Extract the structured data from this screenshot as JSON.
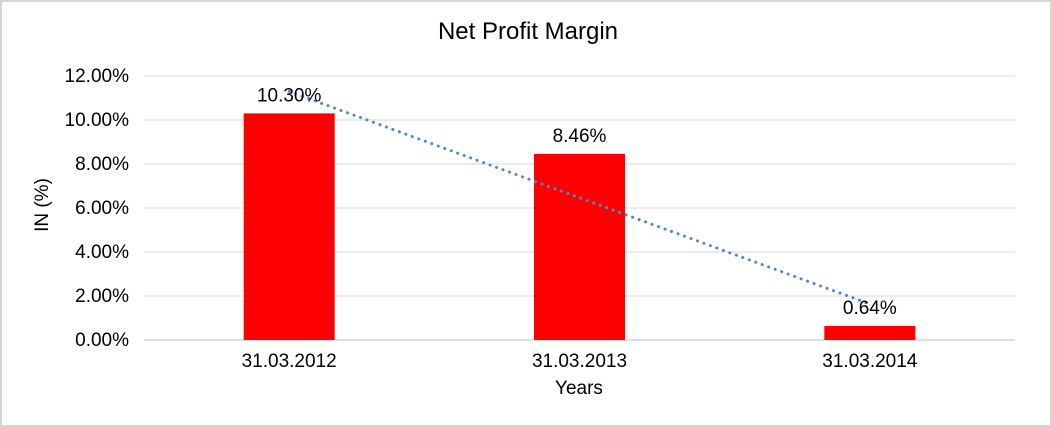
{
  "frame": {
    "border_color": "#d4d4d4",
    "background_color": "#ffffff"
  },
  "chart_data": {
    "type": "bar",
    "title": "Net Profit Margin",
    "xlabel": "Years",
    "ylabel": "IN (%)",
    "categories": [
      "31.03.2012",
      "31.03.2013",
      "31.03.2014"
    ],
    "values": [
      10.3,
      8.46,
      0.64
    ],
    "data_labels": [
      "10.30%",
      "8.46%",
      "0.64%"
    ],
    "ylim": [
      0,
      12
    ],
    "ytick_values": [
      0,
      2,
      4,
      6,
      8,
      10,
      12
    ],
    "ytick_labels": [
      "0.00%",
      "2.00%",
      "4.00%",
      "6.00%",
      "8.00%",
      "10.00%",
      "12.00%"
    ],
    "grid": true,
    "legend_position": "none",
    "bar_color": "#ff0000",
    "gridline_color": "#d9d9d9",
    "axis_line_color": "#bfbfbf",
    "text_color": "#000000",
    "trendline": {
      "type": "linear",
      "style": "dotted",
      "color": "#4e8ac8"
    }
  }
}
